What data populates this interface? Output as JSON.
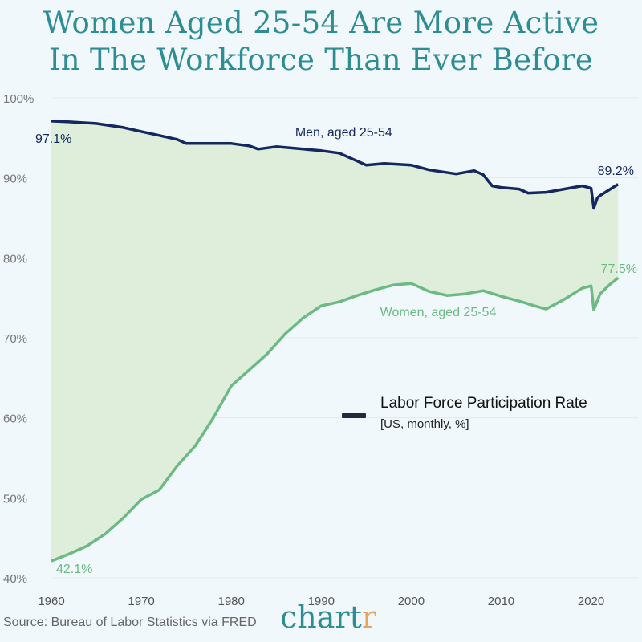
{
  "title_line1": "Women Aged 25-54 Are More Active",
  "title_line2": "In The Workforce Than Ever Before",
  "legend": {
    "title": "Labor Force Participation Rate",
    "subtitle": "[US, monthly, %]"
  },
  "source": "Source: Bureau of Labor Statistics via FRED",
  "brand": {
    "main": "chart",
    "accent_letter": "r"
  },
  "colors": {
    "background": "#f0f8fb",
    "title": "#2e8c93",
    "men": "#14275e",
    "women": "#6cb983",
    "fill": "#dfeedb",
    "brand_accent": "#e8a45c"
  },
  "chart_data": {
    "type": "line",
    "title": "Women Aged 25-54 Are More Active In The Workforce Than Ever Before",
    "xlabel": "",
    "ylabel": "",
    "xlim": [
      1960,
      2023.25
    ],
    "ylim": [
      40,
      100
    ],
    "x_ticks": [
      1960,
      1970,
      1980,
      1990,
      2000,
      2010,
      2020
    ],
    "y_ticks": [
      40,
      50,
      60,
      70,
      80,
      90,
      100
    ],
    "y_tick_labels": [
      "40%",
      "50%",
      "60%",
      "70%",
      "80%",
      "90%",
      "100%"
    ],
    "grid": "horizontal",
    "fill_between_series": true,
    "series": [
      {
        "name": "Men, aged 25-54",
        "start_label": "97.1%",
        "end_label": "89.2%",
        "points": [
          [
            1960,
            97.1
          ],
          [
            1962,
            97.0
          ],
          [
            1965,
            96.8
          ],
          [
            1968,
            96.3
          ],
          [
            1970,
            95.8
          ],
          [
            1972,
            95.3
          ],
          [
            1974,
            94.8
          ],
          [
            1975,
            94.3
          ],
          [
            1977,
            94.3
          ],
          [
            1980,
            94.3
          ],
          [
            1982,
            94.0
          ],
          [
            1983,
            93.6
          ],
          [
            1985,
            93.9
          ],
          [
            1988,
            93.6
          ],
          [
            1990,
            93.4
          ],
          [
            1992,
            93.1
          ],
          [
            1995,
            91.6
          ],
          [
            1997,
            91.8
          ],
          [
            2000,
            91.6
          ],
          [
            2002,
            91.0
          ],
          [
            2005,
            90.5
          ],
          [
            2007,
            90.9
          ],
          [
            2008,
            90.4
          ],
          [
            2009,
            89.0
          ],
          [
            2010,
            88.8
          ],
          [
            2012,
            88.6
          ],
          [
            2013,
            88.1
          ],
          [
            2015,
            88.2
          ],
          [
            2017,
            88.6
          ],
          [
            2019,
            89.0
          ],
          [
            2020,
            88.7
          ],
          [
            2020.3,
            86.2
          ],
          [
            2020.7,
            87.5
          ],
          [
            2021,
            87.8
          ],
          [
            2022,
            88.5
          ],
          [
            2023,
            89.2
          ]
        ]
      },
      {
        "name": "Women, aged 25-54",
        "start_label": "42.1%",
        "end_label": "77.5%",
        "points": [
          [
            1960,
            42.1
          ],
          [
            1962,
            43.0
          ],
          [
            1964,
            44.0
          ],
          [
            1966,
            45.5
          ],
          [
            1968,
            47.5
          ],
          [
            1970,
            49.8
          ],
          [
            1972,
            51.0
          ],
          [
            1974,
            54.0
          ],
          [
            1976,
            56.5
          ],
          [
            1978,
            60.0
          ],
          [
            1980,
            64.0
          ],
          [
            1982,
            66.0
          ],
          [
            1984,
            68.0
          ],
          [
            1986,
            70.5
          ],
          [
            1988,
            72.5
          ],
          [
            1990,
            74.0
          ],
          [
            1992,
            74.5
          ],
          [
            1994,
            75.3
          ],
          [
            1996,
            76.0
          ],
          [
            1998,
            76.6
          ],
          [
            2000,
            76.8
          ],
          [
            2002,
            75.8
          ],
          [
            2004,
            75.3
          ],
          [
            2006,
            75.5
          ],
          [
            2008,
            75.9
          ],
          [
            2010,
            75.2
          ],
          [
            2012,
            74.6
          ],
          [
            2014,
            73.9
          ],
          [
            2015,
            73.6
          ],
          [
            2017,
            74.8
          ],
          [
            2019,
            76.2
          ],
          [
            2020,
            76.5
          ],
          [
            2020.3,
            73.5
          ],
          [
            2021,
            75.5
          ],
          [
            2022,
            76.6
          ],
          [
            2023,
            77.5
          ]
        ]
      }
    ],
    "annotations": [
      {
        "text": "Men, aged 25-54",
        "x": 1992.5,
        "y": 95.2
      },
      {
        "text": "Women, aged 25-54",
        "x": 2003,
        "y": 72.7
      }
    ]
  }
}
